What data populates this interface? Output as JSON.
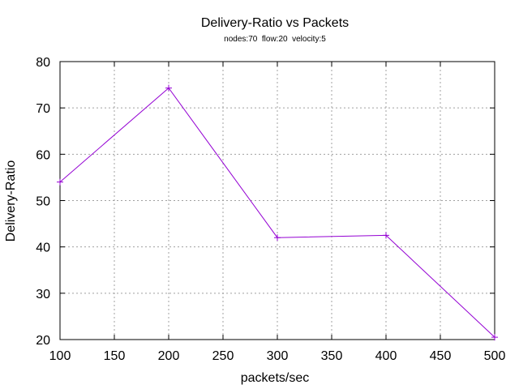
{
  "chart_data": {
    "type": "line",
    "title": "Delivery-Ratio vs Packets",
    "subtitle": "nodes:70  flow:20  velocity:5",
    "xlabel": "packets/sec",
    "ylabel": "Delivery-Ratio",
    "xlim": [
      100,
      500
    ],
    "ylim": [
      20,
      80
    ],
    "x_ticks": [
      100,
      150,
      200,
      250,
      300,
      350,
      400,
      450,
      500
    ],
    "y_ticks": [
      20,
      30,
      40,
      50,
      60,
      70,
      80
    ],
    "grid": true,
    "series": [
      {
        "color": "#9400d3",
        "x": [
          100,
          200,
          300,
          400,
          500
        ],
        "values": [
          54.0,
          74.3,
          42.0,
          42.5,
          20.5
        ]
      }
    ]
  }
}
